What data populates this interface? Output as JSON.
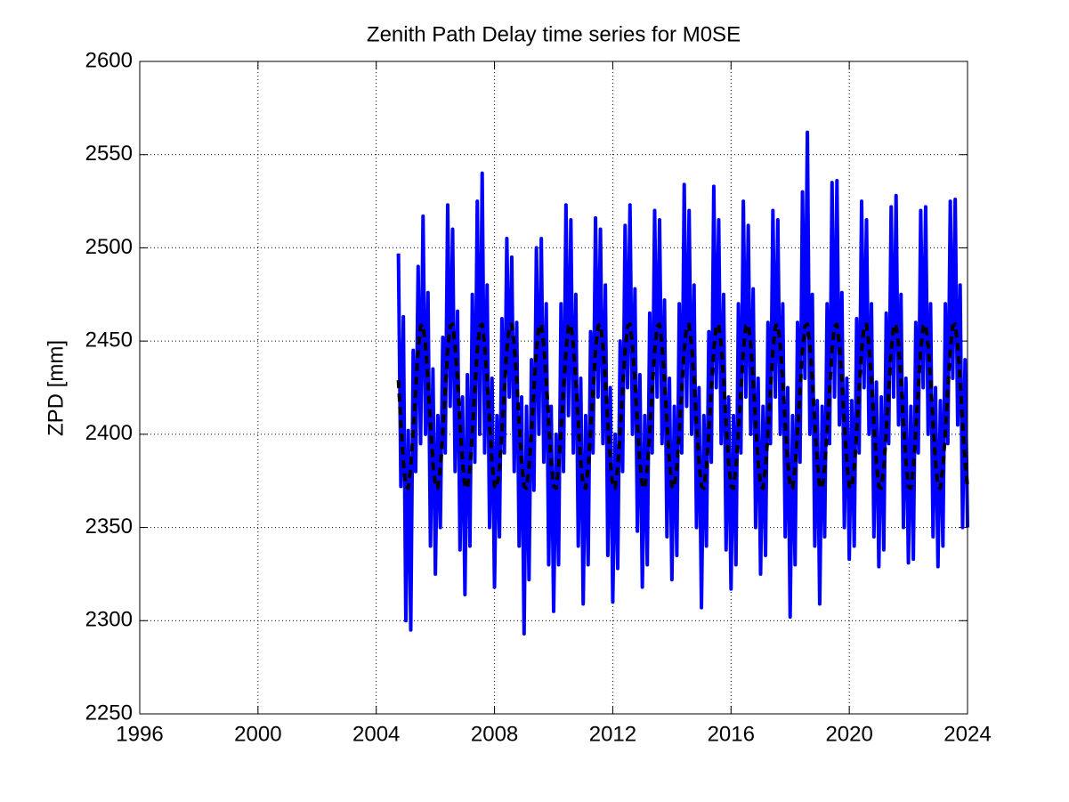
{
  "chart_data": {
    "type": "line",
    "title": "Zenith Path Delay time series for M0SE",
    "y_label": "ZPD [mm]",
    "xlim": [
      1996,
      2024
    ],
    "xticks": [
      1996,
      2000,
      2004,
      2008,
      2012,
      2016,
      2020,
      2024
    ],
    "ylim": [
      2250,
      2600
    ],
    "yticks": [
      2250,
      2300,
      2350,
      2400,
      2450,
      2500,
      2550,
      2600
    ],
    "grid": true,
    "x": [
      2004.75,
      2004.833,
      2004.917,
      2005,
      2005.083,
      2005.167,
      2005.25,
      2005.333,
      2005.417,
      2005.5,
      2005.583,
      2005.667,
      2005.75,
      2005.833,
      2005.917,
      2006,
      2006.083,
      2006.167,
      2006.25,
      2006.333,
      2006.417,
      2006.5,
      2006.583,
      2006.667,
      2006.75,
      2006.833,
      2006.917,
      2007,
      2007.083,
      2007.167,
      2007.25,
      2007.333,
      2007.417,
      2007.5,
      2007.583,
      2007.667,
      2007.75,
      2007.833,
      2007.917,
      2008,
      2008.083,
      2008.167,
      2008.25,
      2008.333,
      2008.417,
      2008.5,
      2008.583,
      2008.667,
      2008.75,
      2008.833,
      2008.917,
      2009,
      2009.083,
      2009.167,
      2009.25,
      2009.333,
      2009.417,
      2009.5,
      2009.583,
      2009.667,
      2009.75,
      2009.833,
      2009.917,
      2010,
      2010.083,
      2010.167,
      2010.25,
      2010.333,
      2010.417,
      2010.5,
      2010.583,
      2010.667,
      2010.75,
      2010.833,
      2010.917,
      2011,
      2011.083,
      2011.167,
      2011.25,
      2011.333,
      2011.417,
      2011.5,
      2011.583,
      2011.667,
      2011.75,
      2011.833,
      2011.917,
      2012,
      2012.083,
      2012.167,
      2012.25,
      2012.333,
      2012.417,
      2012.5,
      2012.583,
      2012.667,
      2012.75,
      2012.833,
      2012.917,
      2013,
      2013.083,
      2013.167,
      2013.25,
      2013.333,
      2013.417,
      2013.5,
      2013.583,
      2013.667,
      2013.75,
      2013.833,
      2013.917,
      2014,
      2014.083,
      2014.167,
      2014.25,
      2014.333,
      2014.417,
      2014.5,
      2014.583,
      2014.667,
      2014.75,
      2014.833,
      2014.917,
      2015,
      2015.083,
      2015.167,
      2015.25,
      2015.333,
      2015.417,
      2015.5,
      2015.583,
      2015.667,
      2015.75,
      2015.833,
      2015.917,
      2016,
      2016.083,
      2016.167,
      2016.25,
      2016.333,
      2016.417,
      2016.5,
      2016.583,
      2016.667,
      2016.75,
      2016.833,
      2016.917,
      2017,
      2017.083,
      2017.167,
      2017.25,
      2017.333,
      2017.417,
      2017.5,
      2017.583,
      2017.667,
      2017.75,
      2017.833,
      2017.917,
      2018,
      2018.083,
      2018.167,
      2018.25,
      2018.333,
      2018.417,
      2018.5,
      2018.583,
      2018.667,
      2018.75,
      2018.833,
      2018.917,
      2019,
      2019.083,
      2019.167,
      2019.25,
      2019.333,
      2019.417,
      2019.5,
      2019.583,
      2019.667,
      2019.75,
      2019.833,
      2019.917,
      2020,
      2020.083,
      2020.167,
      2020.25,
      2020.333,
      2020.417,
      2020.5,
      2020.583,
      2020.667,
      2020.75,
      2020.833,
      2020.917,
      2021,
      2021.083,
      2021.167,
      2021.25,
      2021.333,
      2021.417,
      2021.5,
      2021.583,
      2021.667,
      2021.75,
      2021.833,
      2021.917,
      2022,
      2022.083,
      2022.167,
      2022.25,
      2022.333,
      2022.417,
      2022.5,
      2022.583,
      2022.667,
      2022.75,
      2022.833,
      2022.917,
      2023,
      2023.083,
      2023.167,
      2023.25,
      2023.333,
      2023.417,
      2023.5,
      2023.583,
      2023.667,
      2023.75,
      2023.833,
      2023.917,
      2024
    ],
    "series": [
      {
        "color": "#0000ff",
        "dashed": false,
        "values": [
          2497,
          2372,
          2463,
          2300,
          2402,
          2295,
          2445,
          2380,
          2490,
          2395,
          2517,
          2400,
          2476,
          2340,
          2435,
          2325,
          2410,
          2350,
          2452,
          2390,
          2523,
          2415,
          2510,
          2380,
          2466,
          2338,
          2420,
          2314,
          2432,
          2340,
          2475,
          2385,
          2525,
          2400,
          2540,
          2390,
          2480,
          2350,
          2430,
          2318,
          2410,
          2345,
          2462,
          2390,
          2505,
          2420,
          2495,
          2380,
          2460,
          2340,
          2420,
          2293,
          2415,
          2322,
          2440,
          2370,
          2500,
          2400,
          2505,
          2385,
          2470,
          2330,
          2415,
          2305,
          2400,
          2330,
          2470,
          2380,
          2523,
          2410,
          2515,
          2390,
          2475,
          2340,
          2430,
          2309,
          2410,
          2330,
          2455,
          2390,
          2516,
          2420,
          2510,
          2395,
          2480,
          2335,
          2425,
          2310,
          2400,
          2328,
          2450,
          2380,
          2512,
          2425,
          2523,
          2400,
          2478,
          2348,
          2432,
          2318,
          2410,
          2330,
          2465,
          2390,
          2520,
          2420,
          2515,
          2395,
          2472,
          2345,
          2430,
          2322,
          2415,
          2335,
          2470,
          2390,
          2534,
          2415,
          2520,
          2400,
          2480,
          2350,
          2425,
          2307,
          2410,
          2340,
          2455,
          2385,
          2533,
          2425,
          2515,
          2395,
          2475,
          2338,
          2420,
          2317,
          2410,
          2330,
          2470,
          2390,
          2525,
          2420,
          2512,
          2400,
          2478,
          2350,
          2430,
          2325,
          2415,
          2335,
          2460,
          2395,
          2520,
          2420,
          2515,
          2400,
          2470,
          2345,
          2425,
          2302,
          2410,
          2330,
          2460,
          2385,
          2530,
          2430,
          2562,
          2400,
          2475,
          2340,
          2418,
          2309,
          2415,
          2345,
          2470,
          2395,
          2535,
          2420,
          2536,
          2405,
          2476,
          2350,
          2430,
          2333,
          2418,
          2340,
          2462,
          2390,
          2525,
          2425,
          2515,
          2400,
          2470,
          2345,
          2428,
          2329,
          2420,
          2338,
          2465,
          2395,
          2522,
          2420,
          2528,
          2405,
          2475,
          2350,
          2430,
          2331,
          2415,
          2333,
          2460,
          2390,
          2520,
          2425,
          2522,
          2400,
          2470,
          2345,
          2425,
          2329,
          2418,
          2340,
          2470,
          2395,
          2525,
          2430,
          2526,
          2405,
          2480,
          2350,
          2440,
          2350
        ]
      },
      {
        "color": "#000000",
        "dashed": true,
        "values": [
          2429,
          2406,
          2385,
          2372,
          2371,
          2382,
          2401,
          2424,
          2445,
          2458,
          2459,
          2448,
          2429,
          2406,
          2385,
          2372,
          2371,
          2382,
          2401,
          2424,
          2445,
          2458,
          2459,
          2448,
          2429,
          2406,
          2385,
          2372,
          2371,
          2382,
          2401,
          2424,
          2445,
          2458,
          2459,
          2448,
          2429,
          2406,
          2385,
          2372,
          2371,
          2382,
          2401,
          2424,
          2445,
          2458,
          2459,
          2448,
          2429,
          2406,
          2385,
          2372,
          2371,
          2382,
          2401,
          2424,
          2445,
          2458,
          2459,
          2448,
          2429,
          2406,
          2385,
          2372,
          2371,
          2382,
          2401,
          2424,
          2445,
          2458,
          2459,
          2448,
          2429,
          2406,
          2385,
          2372,
          2371,
          2382,
          2401,
          2424,
          2445,
          2458,
          2459,
          2448,
          2429,
          2406,
          2385,
          2372,
          2371,
          2382,
          2401,
          2424,
          2445,
          2458,
          2459,
          2448,
          2429,
          2406,
          2385,
          2372,
          2371,
          2382,
          2401,
          2424,
          2445,
          2458,
          2459,
          2448,
          2429,
          2406,
          2385,
          2372,
          2371,
          2382,
          2401,
          2424,
          2445,
          2458,
          2459,
          2448,
          2429,
          2406,
          2385,
          2372,
          2371,
          2382,
          2401,
          2424,
          2445,
          2458,
          2459,
          2448,
          2429,
          2406,
          2385,
          2372,
          2371,
          2382,
          2401,
          2424,
          2445,
          2458,
          2459,
          2448,
          2429,
          2406,
          2385,
          2372,
          2371,
          2382,
          2401,
          2424,
          2445,
          2458,
          2459,
          2448,
          2429,
          2406,
          2385,
          2372,
          2371,
          2382,
          2401,
          2424,
          2445,
          2458,
          2459,
          2448,
          2429,
          2406,
          2385,
          2372,
          2371,
          2382,
          2401,
          2424,
          2445,
          2458,
          2459,
          2448,
          2429,
          2406,
          2385,
          2372,
          2371,
          2382,
          2401,
          2424,
          2445,
          2458,
          2459,
          2448,
          2429,
          2406,
          2385,
          2372,
          2371,
          2382,
          2401,
          2424,
          2445,
          2458,
          2459,
          2448,
          2429,
          2406,
          2385,
          2372,
          2371,
          2382,
          2401,
          2424,
          2445,
          2458,
          2459,
          2448,
          2429,
          2406,
          2385,
          2372,
          2371,
          2382,
          2401,
          2424,
          2445,
          2458,
          2459,
          2448,
          2429,
          2406,
          2385,
          2372
        ]
      }
    ]
  }
}
